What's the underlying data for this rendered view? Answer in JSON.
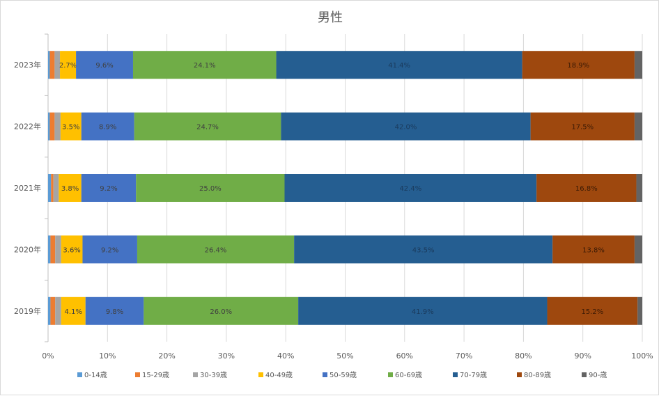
{
  "chart_data": {
    "type": "bar",
    "orientation": "horizontal",
    "stacked": "percent",
    "title": "男性",
    "categories": [
      "2023年",
      "2022年",
      "2021年",
      "2020年",
      "2019年"
    ],
    "x_ticks": [
      "0%",
      "10%",
      "20%",
      "30%",
      "40%",
      "50%",
      "60%",
      "70%",
      "80%",
      "90%",
      "100%"
    ],
    "xlim": [
      0,
      100
    ],
    "grid": "vertical",
    "legend_position": "bottom",
    "series": [
      {
        "name": "0-14歳",
        "color": "#5b9bd5",
        "values": [
          0.3,
          0.3,
          0.5,
          0.4,
          0.4
        ],
        "labels": [
          "",
          "",
          "",
          "",
          ""
        ]
      },
      {
        "name": "15-29歳",
        "color": "#ed7d31",
        "values": [
          0.8,
          0.8,
          0.4,
          0.8,
          0.8
        ],
        "labels": [
          "",
          "",
          "",
          "",
          ""
        ]
      },
      {
        "name": "30-39歳",
        "color": "#a5a5a5",
        "values": [
          0.9,
          1.0,
          0.9,
          1.0,
          1.0
        ],
        "labels": [
          "",
          "",
          "",
          "",
          ""
        ]
      },
      {
        "name": "40-49歳",
        "color": "#ffc000",
        "values": [
          2.7,
          3.5,
          3.8,
          3.6,
          4.1
        ],
        "labels": [
          "2.7%",
          "3.5%",
          "3.8%",
          "3.6%",
          "4.1%"
        ]
      },
      {
        "name": "50-59歳",
        "color": "#4472c4",
        "values": [
          9.6,
          8.9,
          9.2,
          9.2,
          9.8
        ],
        "labels": [
          "9.6%",
          "8.9%",
          "9.2%",
          "9.2%",
          "9.8%"
        ]
      },
      {
        "name": "60-69歳",
        "color": "#70ad47",
        "values": [
          24.1,
          24.7,
          25.0,
          26.4,
          26.0
        ],
        "labels": [
          "24.1%",
          "24.7%",
          "25.0%",
          "26.4%",
          "26.0%"
        ]
      },
      {
        "name": "70-79歳",
        "color": "#255e91",
        "values": [
          41.4,
          42.0,
          42.4,
          43.5,
          41.9
        ],
        "labels": [
          "41.4%",
          "42.0%",
          "42.4%",
          "43.5%",
          "41.9%"
        ]
      },
      {
        "name": "80-89歳",
        "color": "#9e480e",
        "values": [
          18.9,
          17.5,
          16.8,
          13.8,
          15.2
        ],
        "labels": [
          "18.9%",
          "17.5%",
          "16.8%",
          "13.8%",
          "15.2%"
        ]
      },
      {
        "name": "90-歳",
        "color": "#636363",
        "values": [
          1.3,
          1.3,
          1.0,
          1.3,
          0.8
        ],
        "labels": [
          "",
          "",
          "",
          "",
          ""
        ]
      }
    ]
  }
}
